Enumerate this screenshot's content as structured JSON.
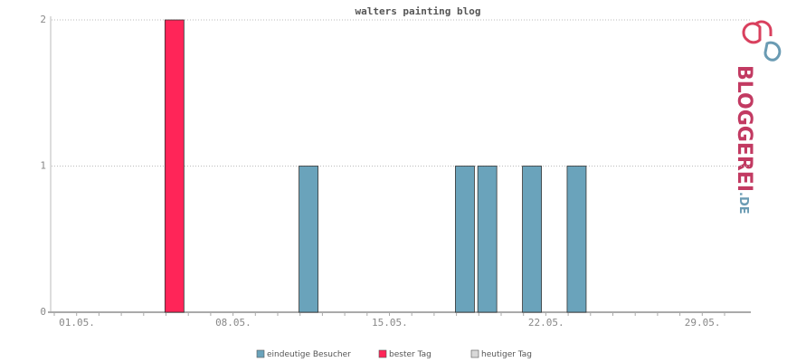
{
  "chart_data": {
    "type": "bar",
    "title": "walters painting blog",
    "categories": [
      null,
      "01.05.",
      null,
      null,
      null,
      null,
      null,
      null,
      "08.05.",
      null,
      null,
      null,
      null,
      null,
      null,
      "15.05.",
      null,
      null,
      null,
      null,
      null,
      null,
      "22.05.",
      null,
      null,
      null,
      null,
      null,
      null,
      "29.05.",
      null
    ],
    "series": [
      {
        "name": "eindeutige Besucher",
        "color": "#6aa3bb",
        "values": [
          0,
          0,
          0,
          0,
          0,
          null,
          0,
          0,
          0,
          0,
          0,
          1,
          0,
          0,
          0,
          0,
          0,
          0,
          1,
          1,
          0,
          1,
          0,
          1,
          0,
          0,
          0,
          0,
          0,
          0,
          0
        ]
      },
      {
        "name": "bester Tag",
        "color": "#ff2558",
        "values": [
          null,
          null,
          null,
          null,
          null,
          2,
          null,
          null,
          null,
          null,
          null,
          null,
          null,
          null,
          null,
          null,
          null,
          null,
          null,
          null,
          null,
          null,
          null,
          null,
          null,
          null,
          null,
          null,
          null,
          null,
          null
        ]
      },
      {
        "name": "heutiger Tag",
        "color": "#d8d8d8",
        "values": [
          null,
          null,
          null,
          null,
          null,
          null,
          null,
          null,
          null,
          null,
          null,
          null,
          null,
          null,
          null,
          null,
          null,
          null,
          null,
          null,
          null,
          null,
          null,
          null,
          null,
          null,
          null,
          null,
          null,
          null,
          null
        ]
      }
    ],
    "ylim": [
      0,
      2
    ],
    "yticks": [
      0,
      1,
      2
    ],
    "grid": true
  },
  "logo": {
    "name": "BLOGGEREI",
    "suffix": ".DE"
  }
}
